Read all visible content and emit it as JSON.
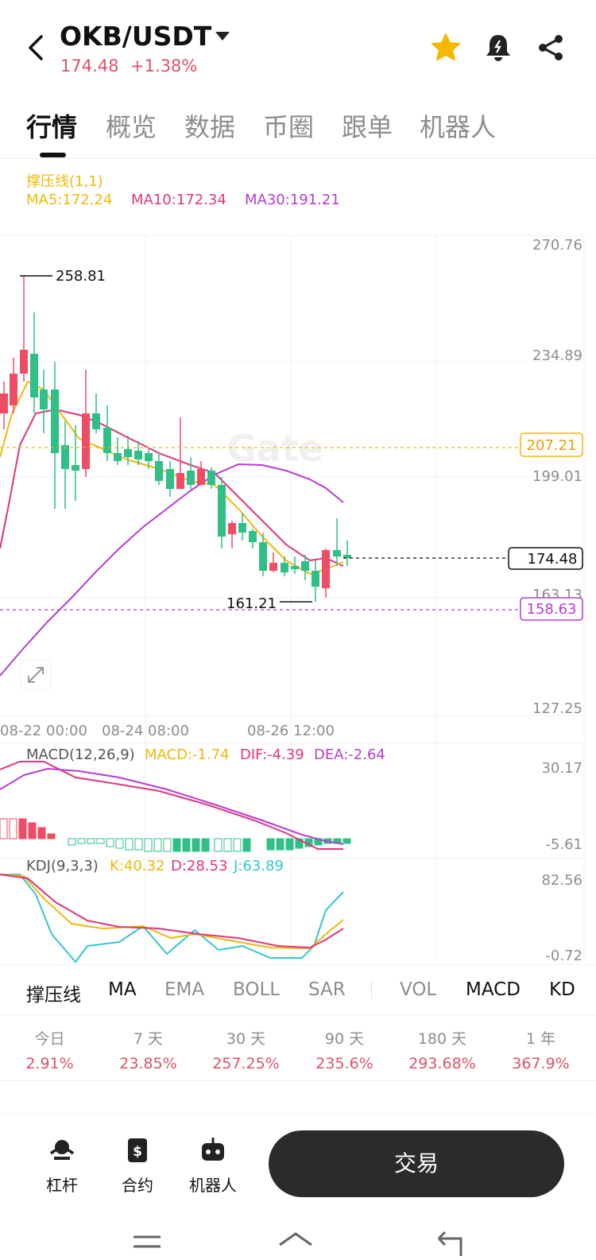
{
  "header": {
    "pair": "OKB/USDT",
    "price": "174.48",
    "change": "+1.38%"
  },
  "tabs": [
    {
      "label": "行情",
      "active": true
    },
    {
      "label": "概览",
      "active": false
    },
    {
      "label": "数据",
      "active": false
    },
    {
      "label": "币圈",
      "active": false
    },
    {
      "label": "跟单",
      "active": false
    },
    {
      "label": "机器人",
      "active": false
    }
  ],
  "indicators": {
    "support": "撑压线(1,1)",
    "ma5": "MA5:172.24",
    "ma10": "MA10:172.34",
    "ma30": "MA30:191.21",
    "macd_title": "MACD(12,26,9)",
    "macd_val": "MACD:-1.74",
    "dif": "DIF:-4.39",
    "dea": "DEA:-2.64",
    "kdj_title": "KDJ(9,3,3)",
    "k": "K:40.32",
    "d": "D:28.53",
    "j": "J:63.89"
  },
  "chart": {
    "price_axis": [
      "270.76",
      "234.89",
      "199.01",
      "163.13",
      "127.25"
    ],
    "high_label": "258.81",
    "low_label": "161.21",
    "resistance": "207.21",
    "current": "174.48",
    "support": "158.63",
    "time_axis": [
      "08-22 00:00",
      "08-24 08:00",
      "08-26 12:00"
    ],
    "macd_axis": [
      "30.17",
      "-5.61"
    ],
    "kdj_axis": [
      "82.56",
      "-0.72"
    ],
    "watermark": "Gate",
    "colors": {
      "up": "#ef4d66",
      "down": "#2fbf87",
      "ma5": "#f0b90b",
      "ma10": "#e0357f",
      "ma30": "#b43ed0",
      "kdj_j": "#34c6cf"
    }
  },
  "indicator_bar": [
    {
      "label": "撑压线",
      "active": true
    },
    {
      "label": "MA",
      "active": true
    },
    {
      "label": "EMA",
      "active": false
    },
    {
      "label": "BOLL",
      "active": false
    },
    {
      "label": "SAR",
      "active": false
    },
    {
      "label": "VOL",
      "active": false
    },
    {
      "label": "MACD",
      "active": true
    },
    {
      "label": "KD",
      "active": true
    }
  ],
  "periods": [
    {
      "label": "今日",
      "value": "2.91%"
    },
    {
      "label": "7 天",
      "value": "23.85%"
    },
    {
      "label": "30 天",
      "value": "257.25%"
    },
    {
      "label": "90 天",
      "value": "235.6%"
    },
    {
      "label": "180 天",
      "value": "293.68%"
    },
    {
      "label": "1 年",
      "value": "367.9%"
    }
  ],
  "bottom": {
    "leverage": "杠杆",
    "contract": "合约",
    "robot": "机器人",
    "trade": "交易"
  }
}
